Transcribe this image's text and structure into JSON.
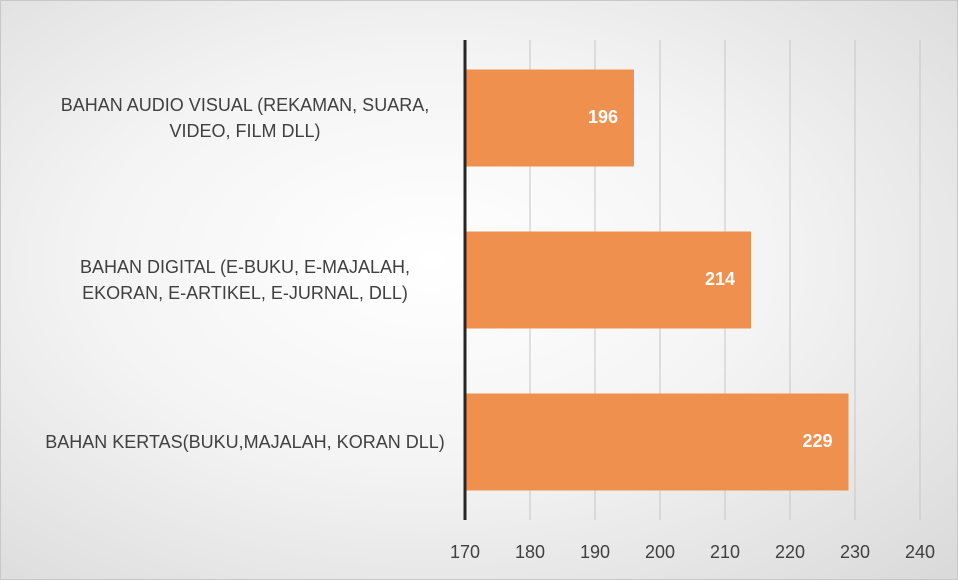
{
  "chart_data": {
    "type": "bar",
    "orientation": "horizontal",
    "categories": [
      "BAHAN AUDIO VISUAL (REKAMAN, SUARA, VIDEO, FILM DLL)",
      "BAHAN DIGITAL (E-BUKU, E-MAJALAH, EKORAN, E-ARTIKEL, E-JURNAL, DLL)",
      "BAHAN KERTAS(BUKU,MAJALAH, KORAN DLL)"
    ],
    "values": [
      196,
      214,
      229
    ],
    "color": "#f0904e",
    "xlim": [
      170,
      240
    ],
    "xticks": [
      170,
      180,
      190,
      200,
      210,
      220,
      230,
      240
    ],
    "grid": true
  }
}
